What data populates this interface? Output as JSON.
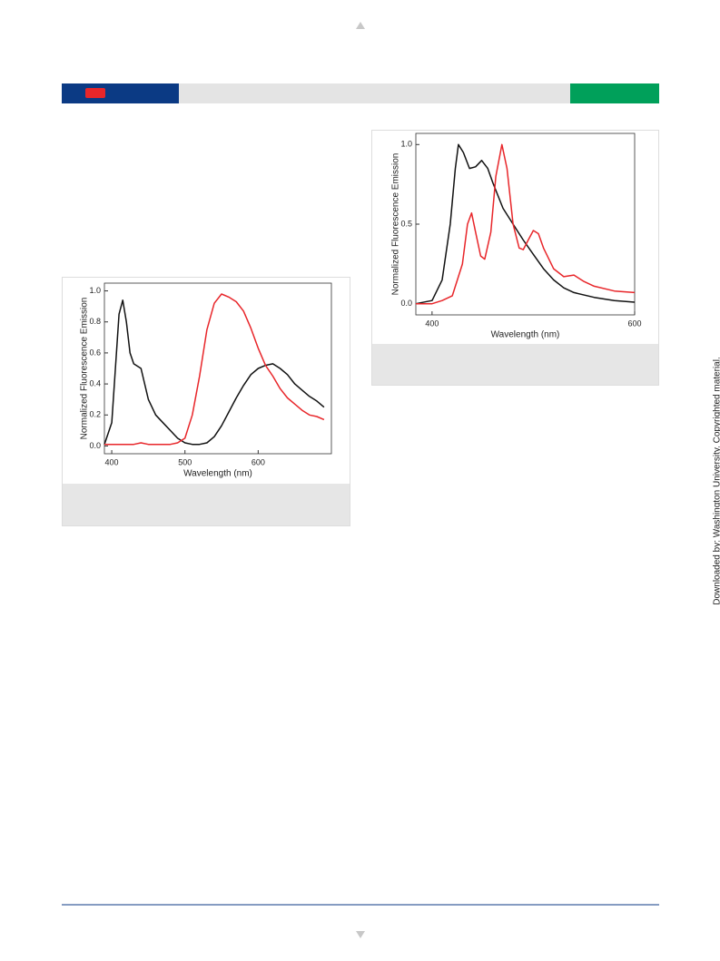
{
  "watermark": "Downloaded by: Washington University. Copyrighted material.",
  "chart_data": [
    {
      "type": "line",
      "xlabel": "Wavelength (nm)",
      "ylabel": "Normalized Fluorescence Emission",
      "xlim": [
        390,
        700
      ],
      "ylim": [
        -0.05,
        1.05
      ],
      "xticks": [
        400,
        500,
        600
      ],
      "yticks": [
        {
          "value": 0,
          "label": "0.0"
        },
        0.2,
        0.4,
        0.6,
        0.8,
        {
          "value": 1,
          "label": "1.0"
        }
      ],
      "series": [
        {
          "color": "#111111",
          "x": [
            390,
            400,
            405,
            410,
            415,
            420,
            425,
            430,
            440,
            450,
            460,
            470,
            480,
            490,
            500,
            510,
            520,
            530,
            540,
            550,
            560,
            570,
            580,
            590,
            600,
            610,
            620,
            630,
            640,
            650,
            660,
            670,
            680,
            690
          ],
          "values": [
            0.01,
            0.15,
            0.5,
            0.85,
            0.94,
            0.8,
            0.6,
            0.53,
            0.5,
            0.3,
            0.2,
            0.15,
            0.1,
            0.05,
            0.02,
            0.01,
            0.01,
            0.02,
            0.06,
            0.13,
            0.22,
            0.31,
            0.39,
            0.46,
            0.5,
            0.52,
            0.53,
            0.5,
            0.46,
            0.4,
            0.36,
            0.32,
            0.29,
            0.25
          ]
        },
        {
          "color": "#e8262a",
          "x": [
            390,
            400,
            410,
            420,
            430,
            440,
            450,
            460,
            470,
            480,
            490,
            500,
            510,
            520,
            530,
            540,
            550,
            560,
            570,
            580,
            590,
            600,
            610,
            620,
            630,
            640,
            650,
            660,
            670,
            680,
            690
          ],
          "values": [
            0.01,
            0.01,
            0.01,
            0.01,
            0.01,
            0.02,
            0.01,
            0.01,
            0.01,
            0.01,
            0.02,
            0.05,
            0.2,
            0.45,
            0.75,
            0.92,
            0.98,
            0.96,
            0.93,
            0.87,
            0.76,
            0.63,
            0.52,
            0.45,
            0.37,
            0.31,
            0.27,
            0.23,
            0.2,
            0.19,
            0.17
          ]
        }
      ]
    },
    {
      "type": "line",
      "xlabel": "Wavelength (nm)",
      "ylabel": "Normalized Fluorescence Emission",
      "xlim": [
        384,
        600
      ],
      "ylim": [
        -0.07,
        1.07
      ],
      "xticks": [
        400,
        600
      ],
      "yticks": [
        {
          "value": 0,
          "label": "0.0"
        },
        0.5,
        {
          "value": 1,
          "label": "1.0"
        }
      ],
      "series": [
        {
          "color": "#111111",
          "x": [
            384,
            400,
            410,
            418,
            423,
            426,
            431,
            437,
            443,
            449,
            455,
            460,
            470,
            480,
            490,
            500,
            510,
            520,
            530,
            540,
            560,
            580,
            600
          ],
          "values": [
            0.0,
            0.02,
            0.15,
            0.5,
            0.85,
            1.0,
            0.95,
            0.85,
            0.86,
            0.9,
            0.85,
            0.76,
            0.6,
            0.5,
            0.4,
            0.31,
            0.22,
            0.15,
            0.1,
            0.07,
            0.04,
            0.02,
            0.01
          ]
        },
        {
          "color": "#e8262a",
          "x": [
            384,
            400,
            410,
            420,
            430,
            435,
            439,
            443,
            448,
            452,
            458,
            463,
            469,
            474,
            480,
            486,
            490,
            495,
            500,
            505,
            510,
            520,
            530,
            540,
            550,
            560,
            580,
            600
          ],
          "values": [
            0.0,
            0.0,
            0.02,
            0.05,
            0.25,
            0.5,
            0.57,
            0.45,
            0.3,
            0.28,
            0.45,
            0.8,
            1.0,
            0.85,
            0.5,
            0.35,
            0.34,
            0.4,
            0.46,
            0.44,
            0.35,
            0.22,
            0.17,
            0.18,
            0.14,
            0.11,
            0.08,
            0.07
          ]
        }
      ]
    }
  ]
}
